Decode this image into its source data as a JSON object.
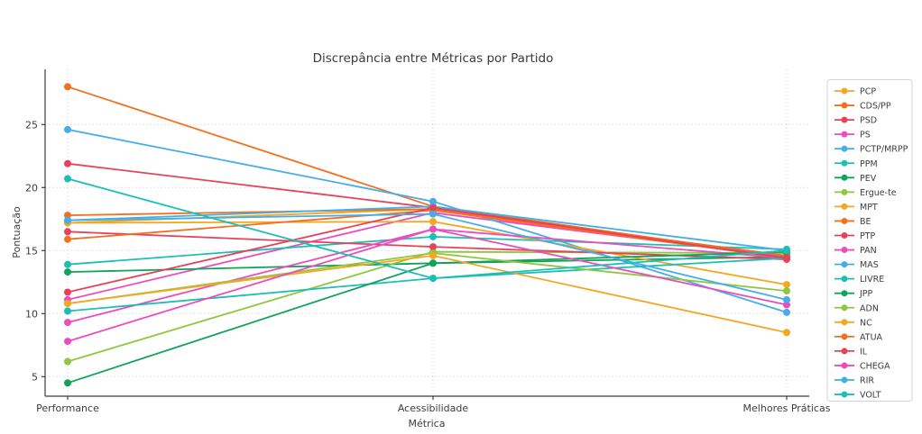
{
  "chart_data": {
    "type": "line",
    "title": "Discrepância entre Métricas por Partido",
    "xlabel": "Métrica",
    "ylabel": "Pontuação",
    "categories": [
      "Performance",
      "Acessibilidade",
      "Melhores Práticas"
    ],
    "yticks": [
      5,
      10,
      15,
      20,
      25
    ],
    "ylim": [
      3.4,
      29.3
    ],
    "grid": "dotted, both axes",
    "legend_position": "right",
    "palette": [
      "#F5A623",
      "#F2701E",
      "#E8415B",
      "#ED4CBC",
      "#45AEE8",
      "#1CBFB4",
      "#10A35A",
      "#8FC73E"
    ],
    "series": [
      {
        "name": "PCP",
        "color": "#F5A623",
        "values": [
          17.2,
          18.3,
          14.4
        ]
      },
      {
        "name": "CDS/PP",
        "color": "#F2701E",
        "values": [
          28.0,
          18.5,
          14.5
        ]
      },
      {
        "name": "PSD",
        "color": "#E8415B",
        "values": [
          21.9,
          18.4,
          14.5
        ]
      },
      {
        "name": "PS",
        "color": "#ED4CBC",
        "values": [
          11.1,
          18.0,
          14.5
        ]
      },
      {
        "name": "PCTP/MRPP",
        "color": "#45AEE8",
        "values": [
          24.6,
          18.9,
          10.1
        ]
      },
      {
        "name": "PPM",
        "color": "#1CBFB4",
        "values": [
          13.9,
          16.1,
          15.1
        ]
      },
      {
        "name": "PEV",
        "color": "#10A35A",
        "values": [
          13.3,
          14.0,
          14.5
        ]
      },
      {
        "name": "Ergue-te",
        "color": "#8FC73E",
        "values": [
          6.2,
          14.9,
          14.8
        ]
      },
      {
        "name": "MPT",
        "color": "#F5A623",
        "values": [
          17.2,
          17.3,
          12.3
        ]
      },
      {
        "name": "BE",
        "color": "#F2701E",
        "values": [
          17.8,
          18.3,
          14.6
        ]
      },
      {
        "name": "PTP",
        "color": "#E8415B",
        "values": [
          16.5,
          15.3,
          14.3
        ]
      },
      {
        "name": "PAN",
        "color": "#ED4CBC",
        "values": [
          9.3,
          16.7,
          14.4
        ]
      },
      {
        "name": "MAS",
        "color": "#45AEE8",
        "values": [
          17.4,
          18.5,
          15.0
        ]
      },
      {
        "name": "LIVRE",
        "color": "#1CBFB4",
        "values": [
          10.2,
          12.8,
          14.4
        ]
      },
      {
        "name": "JPP",
        "color": "#10A35A",
        "values": [
          4.5,
          14.0,
          14.9
        ]
      },
      {
        "name": "ADN",
        "color": "#8FC73E",
        "values": [
          10.8,
          14.8,
          11.8
        ]
      },
      {
        "name": "NC",
        "color": "#F5A623",
        "values": [
          10.8,
          14.6,
          8.5
        ]
      },
      {
        "name": "ATUA",
        "color": "#F2701E",
        "values": [
          15.9,
          18.2,
          14.4
        ]
      },
      {
        "name": "IL",
        "color": "#E8415B",
        "values": [
          11.7,
          18.4,
          14.4
        ]
      },
      {
        "name": "CHEGA",
        "color": "#ED4CBC",
        "values": [
          7.8,
          16.7,
          10.7
        ]
      },
      {
        "name": "RIR",
        "color": "#45AEE8",
        "values": [
          17.4,
          17.9,
          11.1
        ]
      },
      {
        "name": "VOLT",
        "color": "#1CBFB4",
        "values": [
          20.7,
          12.8,
          15.0
        ]
      }
    ]
  },
  "style": {
    "grid_color": "#d9d9d9",
    "spine_color": "#3c3c3c",
    "legend_border_color": "#d4d4d4",
    "background": "#ffffff"
  }
}
